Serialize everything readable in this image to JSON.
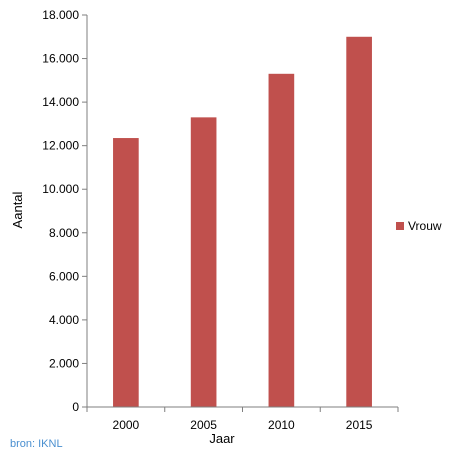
{
  "chart_data": {
    "type": "bar",
    "categories": [
      "2000",
      "2005",
      "2010",
      "2015"
    ],
    "series": [
      {
        "name": "Vrouw",
        "values": [
          12350,
          13300,
          15300,
          17000
        ],
        "color": "#c0504d"
      }
    ],
    "title": "",
    "xlabel": "Jaar",
    "ylabel": "Aantal",
    "ylim": [
      0,
      18000
    ],
    "yticks": [
      0,
      2000,
      4000,
      6000,
      8000,
      10000,
      12000,
      14000,
      16000,
      18000
    ],
    "ytick_labels": [
      "0",
      "2.000",
      "4.000",
      "6.000",
      "8.000",
      "10.000",
      "12.000",
      "14.000",
      "16.000",
      "18.000"
    ],
    "grid": false,
    "legend_position": "right"
  },
  "source_text": "bron: IKNL"
}
